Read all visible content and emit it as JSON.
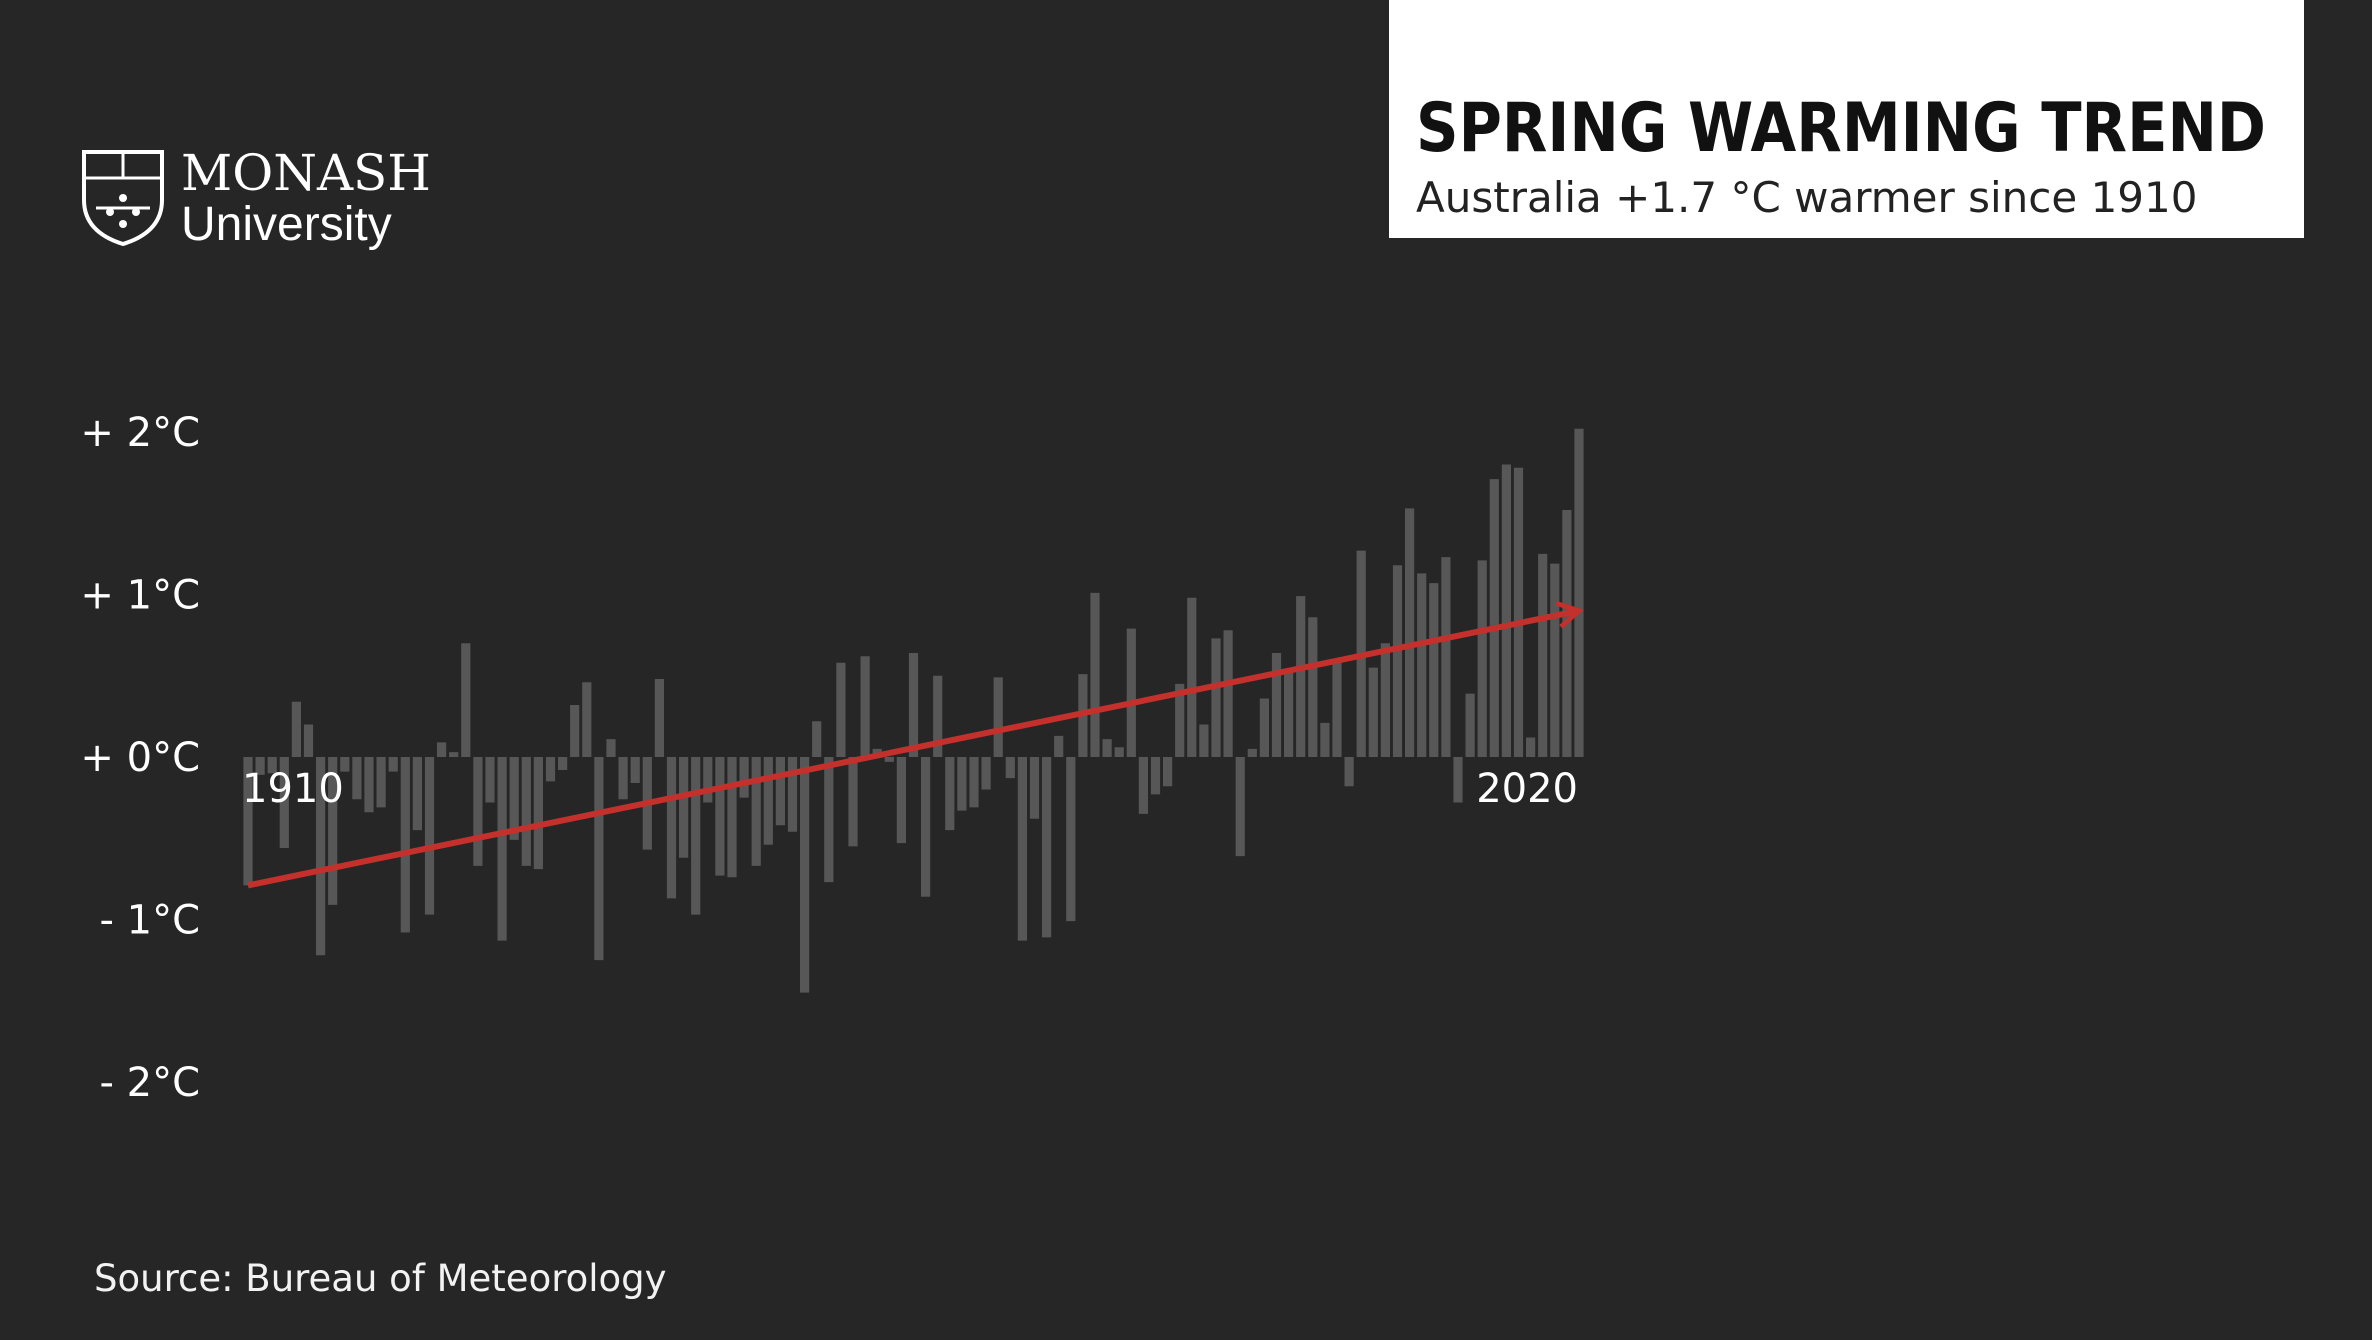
{
  "chart_data": {
    "type": "bar",
    "title": "SPRING WARMING TREND",
    "subtitle": "Australia +1.7 °C warmer since 1910",
    "source": "Source: Bureau of Meteorology",
    "x": [
      1910,
      1911,
      1912,
      1913,
      1914,
      1915,
      1916,
      1917,
      1918,
      1919,
      1920,
      1921,
      1922,
      1923,
      1924,
      1925,
      1926,
      1927,
      1928,
      1929,
      1930,
      1931,
      1932,
      1933,
      1934,
      1935,
      1936,
      1937,
      1938,
      1939,
      1940,
      1941,
      1942,
      1943,
      1944,
      1945,
      1946,
      1947,
      1948,
      1949,
      1950,
      1951,
      1952,
      1953,
      1954,
      1955,
      1956,
      1957,
      1958,
      1959,
      1960,
      1961,
      1962,
      1963,
      1964,
      1965,
      1966,
      1967,
      1968,
      1969,
      1970,
      1971,
      1972,
      1973,
      1974,
      1975,
      1976,
      1977,
      1978,
      1979,
      1980,
      1981,
      1982,
      1983,
      1984,
      1985,
      1986,
      1987,
      1988,
      1989,
      1990,
      1991,
      1992,
      1993,
      1994,
      1995,
      1996,
      1997,
      1998,
      1999,
      2000,
      2001,
      2002,
      2003,
      2004,
      2005,
      2006,
      2007,
      2008,
      2009,
      2010,
      2011,
      2012,
      2013,
      2014,
      2015,
      2016,
      2017,
      2018,
      2019,
      2020
    ],
    "values": [
      -0.79,
      -0.11,
      -0.1,
      -0.56,
      0.34,
      0.2,
      -1.22,
      -0.91,
      -0.09,
      -0.26,
      -0.34,
      -0.31,
      -0.09,
      -1.08,
      -0.45,
      -0.97,
      0.09,
      0.03,
      0.7,
      -0.67,
      -0.28,
      -1.13,
      -0.51,
      -0.67,
      -0.69,
      -0.15,
      -0.08,
      0.32,
      0.46,
      -1.25,
      0.11,
      -0.26,
      -0.16,
      -0.57,
      0.48,
      -0.87,
      -0.62,
      -0.97,
      -0.28,
      -0.73,
      -0.74,
      -0.25,
      -0.67,
      -0.54,
      -0.42,
      -0.46,
      -1.45,
      0.22,
      -0.77,
      0.58,
      -0.55,
      0.62,
      0.05,
      -0.03,
      -0.53,
      0.64,
      -0.86,
      0.5,
      -0.45,
      -0.33,
      -0.31,
      -0.2,
      0.49,
      -0.13,
      -1.13,
      -0.38,
      -1.11,
      0.13,
      -1.01,
      0.51,
      1.01,
      0.11,
      0.06,
      0.79,
      -0.35,
      -0.23,
      -0.18,
      0.45,
      0.98,
      0.2,
      0.73,
      0.78,
      -0.61,
      0.05,
      0.36,
      0.64,
      0.54,
      0.99,
      0.86,
      0.21,
      0.58,
      -0.18,
      1.27,
      0.55,
      0.7,
      1.18,
      1.53,
      1.13,
      1.07,
      1.23,
      -0.28,
      0.39,
      1.21,
      1.71,
      1.8,
      1.78,
      0.12,
      1.25,
      1.19,
      1.52,
      2.02
    ],
    "color": "#575757",
    "trend_line": {
      "x": [
        1910,
        2020
      ],
      "values": [
        -0.79,
        0.9
      ],
      "color": "#c4302b"
    },
    "xlim": [
      1910,
      2020
    ],
    "xticks": [
      1910,
      2020
    ],
    "ylim": [
      -2,
      2
    ],
    "yticks": [
      {
        "value": 2,
        "label": "+ 2°C"
      },
      {
        "value": 1,
        "label": "+ 1°C"
      },
      {
        "value": 0,
        "label": "+ 0°C"
      },
      {
        "value": -1,
        "label": "- 1°C"
      },
      {
        "value": -2,
        "label": "- 2°C"
      }
    ]
  },
  "logo": {
    "name": "MONASH",
    "subname": "University"
  }
}
